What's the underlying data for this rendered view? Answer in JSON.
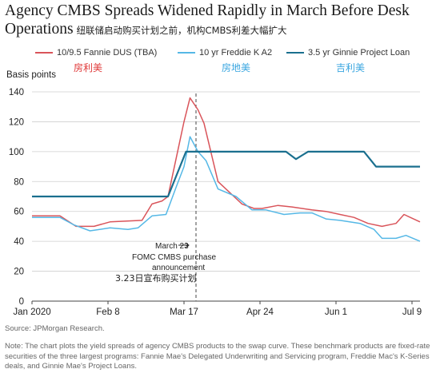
{
  "header": {
    "title": "Agency CMBS Spreads Widened Rapidly in March Before Desk Operations",
    "subtitle_cn": "纽联储启动购买计划之前，机构CMBS利差大幅扩大"
  },
  "legend": {
    "items": [
      {
        "label": "10/9.5 Fannie DUS (TBA)",
        "label_cn": "房利美",
        "color": "#d9545a"
      },
      {
        "label": "10 yr Freddie K A2",
        "label_cn": "房地美",
        "color": "#55b8e6"
      },
      {
        "label": "3.5 yr Ginnie Project Loan",
        "label_cn": "吉利美",
        "color": "#1a6f8e"
      }
    ]
  },
  "annotation": {
    "line1": "March 23",
    "line2": "FOMC CMBS purchase",
    "line3": "announcement",
    "line_cn": "3.23日宣布购买计划"
  },
  "footer": {
    "source": "Source: JPMorgan Research.",
    "note": "Note: The chart plots the yield spreads of agency CMBS products to the swap curve. These benchmark products are fixed-rate securities of the three largest programs: Fannie Mae's Delegated Underwriting and Servicing program, Freddie Mac's K-Series deals, and Ginnie Mae's Project Loans."
  },
  "chart_data": {
    "type": "line",
    "ylabel": "Basis points",
    "ylim": [
      0,
      140
    ],
    "yticks": [
      0,
      20,
      40,
      60,
      80,
      100,
      120,
      140
    ],
    "xlim": [
      "2020-01-01",
      "2020-07-13"
    ],
    "xticks": [
      {
        "date": "2020-01-01",
        "label": "Jan 2020"
      },
      {
        "date": "2020-02-08",
        "label": "Feb 8"
      },
      {
        "date": "2020-03-17",
        "label": "Mar 17"
      },
      {
        "date": "2020-04-24",
        "label": "Apr 24"
      },
      {
        "date": "2020-06-01",
        "label": "Jun 1"
      },
      {
        "date": "2020-07-09",
        "label": "Jul 9"
      }
    ],
    "grid": "horizontal",
    "event_line": {
      "date": "2020-03-23"
    },
    "series": [
      {
        "name": "10/9.5 Fannie DUS (TBA)",
        "color": "#d9545a",
        "points": [
          [
            "2020-01-01",
            57
          ],
          [
            "2020-01-15",
            57
          ],
          [
            "2020-01-23",
            50
          ],
          [
            "2020-02-01",
            50
          ],
          [
            "2020-02-09",
            53
          ],
          [
            "2020-02-25",
            54
          ],
          [
            "2020-03-01",
            65
          ],
          [
            "2020-03-06",
            67
          ],
          [
            "2020-03-09",
            70
          ],
          [
            "2020-03-13",
            95
          ],
          [
            "2020-03-17",
            120
          ],
          [
            "2020-03-20",
            136
          ],
          [
            "2020-03-24",
            128
          ],
          [
            "2020-03-27",
            119
          ],
          [
            "2020-04-03",
            80
          ],
          [
            "2020-04-15",
            65
          ],
          [
            "2020-04-21",
            62
          ],
          [
            "2020-04-25",
            62
          ],
          [
            "2020-05-03",
            64
          ],
          [
            "2020-05-10",
            63
          ],
          [
            "2020-05-20",
            61
          ],
          [
            "2020-05-27",
            60
          ],
          [
            "2020-06-03",
            58
          ],
          [
            "2020-06-10",
            56
          ],
          [
            "2020-06-17",
            52
          ],
          [
            "2020-06-24",
            50
          ],
          [
            "2020-07-01",
            52
          ],
          [
            "2020-07-05",
            58
          ],
          [
            "2020-07-13",
            53
          ]
        ]
      },
      {
        "name": "10 yr Freddie K A2",
        "color": "#55b8e6",
        "points": [
          [
            "2020-01-01",
            56
          ],
          [
            "2020-01-15",
            56
          ],
          [
            "2020-01-22",
            51
          ],
          [
            "2020-01-30",
            47
          ],
          [
            "2020-02-09",
            49
          ],
          [
            "2020-02-18",
            48
          ],
          [
            "2020-02-23",
            49
          ],
          [
            "2020-03-01",
            57
          ],
          [
            "2020-03-08",
            58
          ],
          [
            "2020-03-13",
            76
          ],
          [
            "2020-03-17",
            90
          ],
          [
            "2020-03-20",
            110
          ],
          [
            "2020-03-24",
            100
          ],
          [
            "2020-03-28",
            94
          ],
          [
            "2020-04-03",
            75
          ],
          [
            "2020-04-12",
            70
          ],
          [
            "2020-04-20",
            61
          ],
          [
            "2020-04-27",
            61
          ],
          [
            "2020-05-06",
            58
          ],
          [
            "2020-05-14",
            59
          ],
          [
            "2020-05-20",
            59
          ],
          [
            "2020-05-27",
            55
          ],
          [
            "2020-06-03",
            54
          ],
          [
            "2020-06-13",
            52
          ],
          [
            "2020-06-20",
            48
          ],
          [
            "2020-06-24",
            42
          ],
          [
            "2020-07-01",
            42
          ],
          [
            "2020-07-06",
            44
          ],
          [
            "2020-07-13",
            40
          ]
        ]
      },
      {
        "name": "3.5 yr Ginnie Project Loan",
        "color": "#1a6f8e",
        "points": [
          [
            "2020-01-01",
            70
          ],
          [
            "2020-03-09",
            70
          ],
          [
            "2020-03-18",
            100
          ],
          [
            "2020-05-07",
            100
          ],
          [
            "2020-05-12",
            95
          ],
          [
            "2020-05-18",
            100
          ],
          [
            "2020-06-15",
            100
          ],
          [
            "2020-06-21",
            90
          ],
          [
            "2020-07-13",
            90
          ]
        ]
      }
    ]
  }
}
